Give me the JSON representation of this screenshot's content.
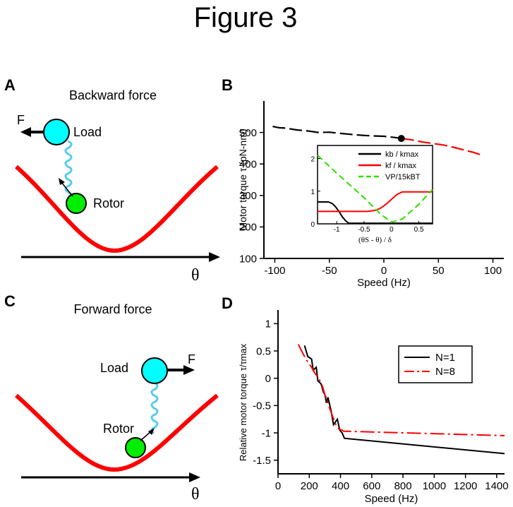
{
  "figure_title": "Figure 3",
  "panels": {
    "A": {
      "letter": "A",
      "title": "Backward force",
      "force_label": "F",
      "load_label": "Load",
      "rotor_label": "Rotor",
      "axis_label": "θ"
    },
    "C": {
      "letter": "C",
      "title": "Forward force",
      "force_label": "F",
      "load_label": "Load",
      "rotor_label": "Rotor",
      "axis_label": "θ"
    }
  },
  "colors": {
    "potential": "#ff0000",
    "load": "#00ffff",
    "rotor": "#00ee00",
    "spring": "#55ccee",
    "black_series": "#000000",
    "red_series": "#ff0000",
    "green_series": "#33dd00"
  },
  "chart_data": [
    {
      "id": "B",
      "letter": "B",
      "type": "line",
      "xlabel": "Speed (Hz)",
      "ylabel": "Motor torque τ (pN-nm)",
      "xlim": [
        -110,
        110
      ],
      "ylim": [
        100,
        600
      ],
      "xticks": [
        "-100",
        "-50",
        "0",
        "50",
        "100"
      ],
      "yticks": [
        "100",
        "200",
        "300",
        "400",
        "500"
      ],
      "series": [
        {
          "name": "black",
          "color": "#000000",
          "x": [
            -102,
            -96,
            -90,
            -80,
            -70,
            -60,
            -50,
            -40,
            -30,
            -20,
            -10,
            0,
            10,
            16
          ],
          "y": [
            519,
            515,
            514,
            508,
            505,
            500,
            501,
            497,
            494,
            491,
            489,
            488,
            484,
            481
          ]
        },
        {
          "name": "red",
          "color": "#ff0000",
          "x": [
            16,
            25,
            35,
            45,
            55,
            65,
            75,
            82,
            88
          ],
          "y": [
            481,
            477,
            470,
            465,
            460,
            452,
            443,
            437,
            430
          ]
        }
      ],
      "marker": {
        "x": 16,
        "y": 481
      },
      "inset": {
        "type": "line",
        "xlabel": "(θS - θ) / δ",
        "xlim": [
          -1.35,
          0.75
        ],
        "ylim": [
          0,
          2.4
        ],
        "xticks": [
          "-1",
          "-0.5",
          "0",
          "0.5"
        ],
        "yticks": [
          "0",
          "1",
          "2"
        ],
        "legend": [
          {
            "label": "kb / kmax",
            "color": "#000000"
          },
          {
            "label": "kf / kmax",
            "color": "#ff0000"
          },
          {
            "label": "VP/15kBT",
            "color": "#33dd00"
          }
        ],
        "series": [
          {
            "name": "kb / kmax",
            "color": "#000000",
            "x": [
              -1.35,
              -1.15,
              -1.08,
              -1.02,
              -0.96,
              -0.9,
              -0.84,
              -0.78,
              0.75
            ],
            "y": [
              0.67,
              0.67,
              0.62,
              0.52,
              0.38,
              0.22,
              0.1,
              0.02,
              0.02
            ]
          },
          {
            "name": "kf / kmax",
            "color": "#ff0000",
            "x": [
              -1.35,
              -0.45,
              -0.3,
              -0.2,
              -0.1,
              0.0,
              0.1,
              0.2,
              0.75
            ],
            "y": [
              0.38,
              0.38,
              0.41,
              0.48,
              0.6,
              0.75,
              0.9,
              0.98,
              0.98
            ]
          },
          {
            "name": "VP/15kBT",
            "color": "#33dd00",
            "x": [
              -1.35,
              -1.0,
              -0.5,
              -0.2,
              0.0,
              0.2,
              0.5,
              0.75
            ],
            "y": [
              2.1,
              1.55,
              0.8,
              0.3,
              0.05,
              0.15,
              0.6,
              1.05
            ]
          }
        ]
      }
    },
    {
      "id": "D",
      "letter": "D",
      "type": "line",
      "xlabel": "Speed (Hz)",
      "ylabel": "Relative motor torque τ/τmax",
      "xlim": [
        0,
        1450
      ],
      "ylim": [
        -1.75,
        1.25
      ],
      "xticks": [
        "0",
        "200",
        "400",
        "600",
        "800",
        "1000",
        "1200",
        "1400"
      ],
      "yticks": [
        "-1.5",
        "-1",
        "-0.5",
        "0",
        "0.5",
        "1"
      ],
      "legend": [
        {
          "label": "N=1",
          "color": "#000000"
        },
        {
          "label": "N=8",
          "color": "#ff0000"
        }
      ],
      "series": [
        {
          "name": "N=1",
          "color": "#000000",
          "x": [
            170,
            190,
            215,
            225,
            245,
            255,
            275,
            290,
            300,
            310,
            320,
            340,
            355,
            380,
            395,
            410,
            425,
            1450
          ],
          "y": [
            0.6,
            0.4,
            0.35,
            0.15,
            0.2,
            -0.05,
            -0.1,
            -0.25,
            -0.3,
            -0.45,
            -0.35,
            -0.6,
            -0.85,
            -0.75,
            -0.95,
            -1.0,
            -1.1,
            -1.38
          ]
        },
        {
          "name": "N=8",
          "color": "#ff0000",
          "x": [
            130,
            160,
            190,
            215,
            235,
            260,
            285,
            300,
            315,
            330,
            350,
            370,
            390,
            410,
            420,
            430,
            1450
          ],
          "y": [
            0.62,
            0.45,
            0.3,
            0.2,
            0.1,
            0.0,
            -0.15,
            -0.3,
            -0.4,
            -0.55,
            -0.7,
            -0.85,
            -0.93,
            -0.95,
            -0.97,
            -0.97,
            -1.05
          ]
        }
      ]
    }
  ]
}
